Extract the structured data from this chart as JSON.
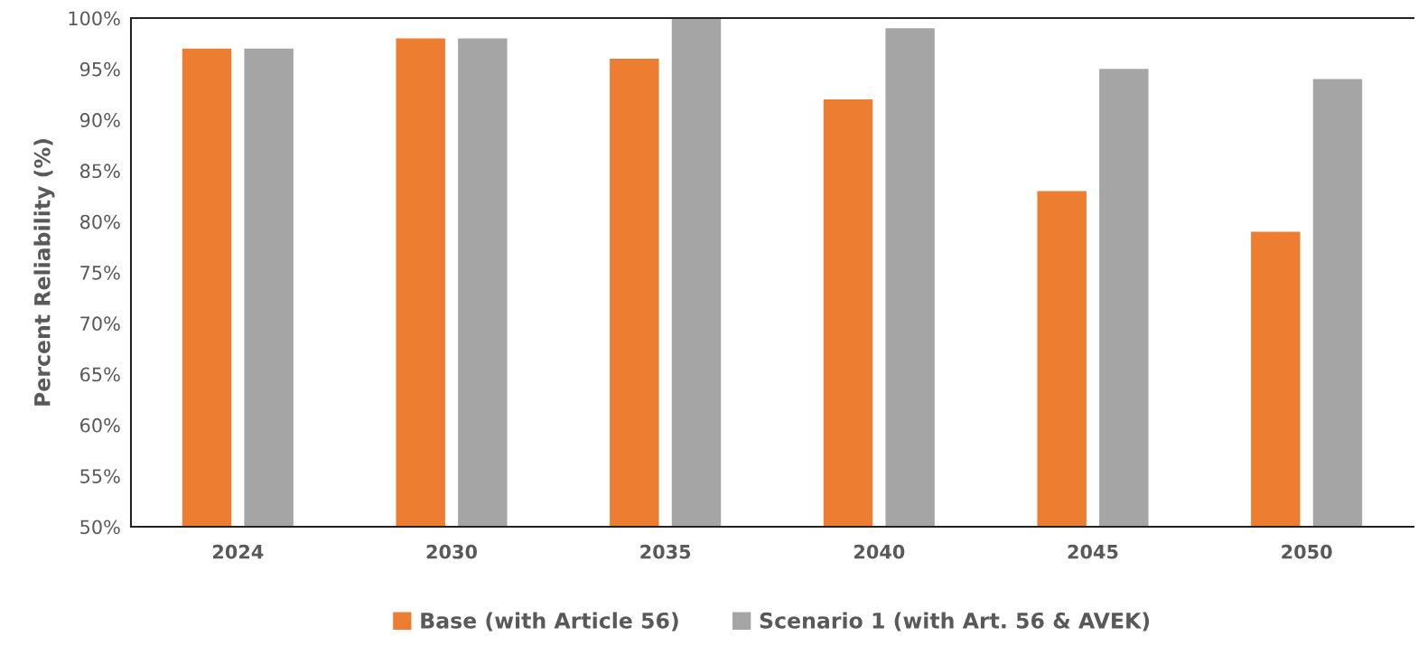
{
  "chart_data": {
    "type": "bar",
    "ylabel": "Percent Reliability (%)",
    "categories": [
      "2024",
      "2030",
      "2035",
      "2040",
      "2045",
      "2050"
    ],
    "series": [
      {
        "name": "Base (with Article 56)",
        "color": "#ed7d31",
        "values": [
          97,
          98,
          96,
          92,
          83,
          79
        ]
      },
      {
        "name": "Scenario 1 (with Art. 56 & AVEK)",
        "color": "#a5a5a5",
        "values": [
          97,
          98,
          100,
          99,
          95,
          94
        ]
      }
    ],
    "ylim": [
      50,
      100
    ],
    "yticks": [
      {
        "value": 50,
        "label": "50%"
      },
      {
        "value": 55,
        "label": "55%"
      },
      {
        "value": 60,
        "label": "60%"
      },
      {
        "value": 65,
        "label": "65%"
      },
      {
        "value": 70,
        "label": "70%"
      },
      {
        "value": 75,
        "label": "75%"
      },
      {
        "value": 80,
        "label": "80%"
      },
      {
        "value": 85,
        "label": "85%"
      },
      {
        "value": 90,
        "label": "90%"
      },
      {
        "value": 95,
        "label": "95%"
      },
      {
        "value": 100,
        "label": "100%"
      }
    ],
    "grid": false,
    "legend": "bottom"
  }
}
